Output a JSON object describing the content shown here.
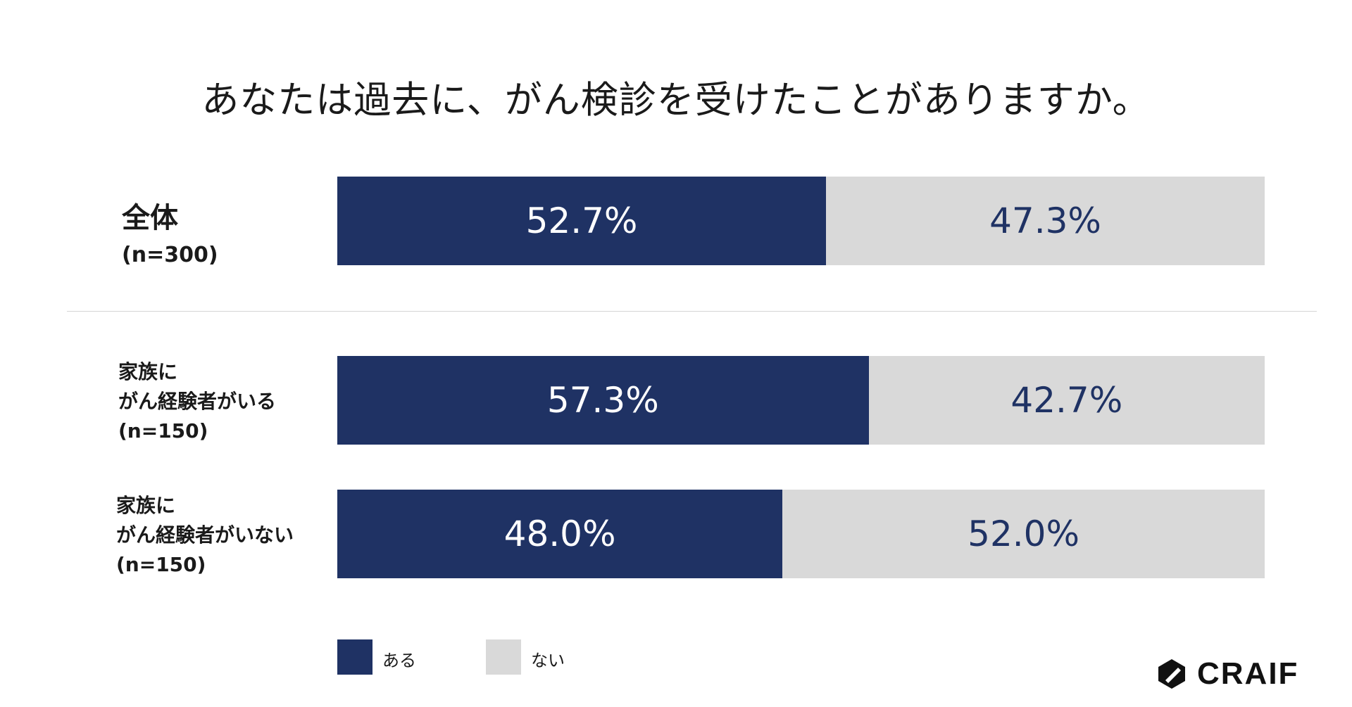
{
  "chart_data": {
    "type": "bar",
    "stacked": true,
    "orientation": "horizontal",
    "title": "あなたは過去に、がん検診を受けたことがありますか。",
    "categories": [
      [
        "全体",
        "(n=300)"
      ],
      [
        "家族に",
        "がん経験者がいる",
        "(n=150)"
      ],
      [
        "家族に",
        "がん経験者がいない",
        "(n=150)"
      ]
    ],
    "series": [
      {
        "name": "ある",
        "values": [
          52.7,
          57.3,
          48.0
        ],
        "labels": [
          "52.7%",
          "57.3%",
          "48.0%"
        ],
        "color": "#1f3264",
        "label_color": "#ffffff"
      },
      {
        "name": "ない",
        "values": [
          47.3,
          42.7,
          52.0
        ],
        "labels": [
          "47.3%",
          "42.7%",
          "52.0%"
        ],
        "color": "#d9d9d9",
        "label_color": "#1f3264"
      }
    ],
    "xlim": [
      0,
      100
    ],
    "grid": false,
    "legend": "bottom"
  },
  "brand": {
    "name": "CRAIF"
  }
}
